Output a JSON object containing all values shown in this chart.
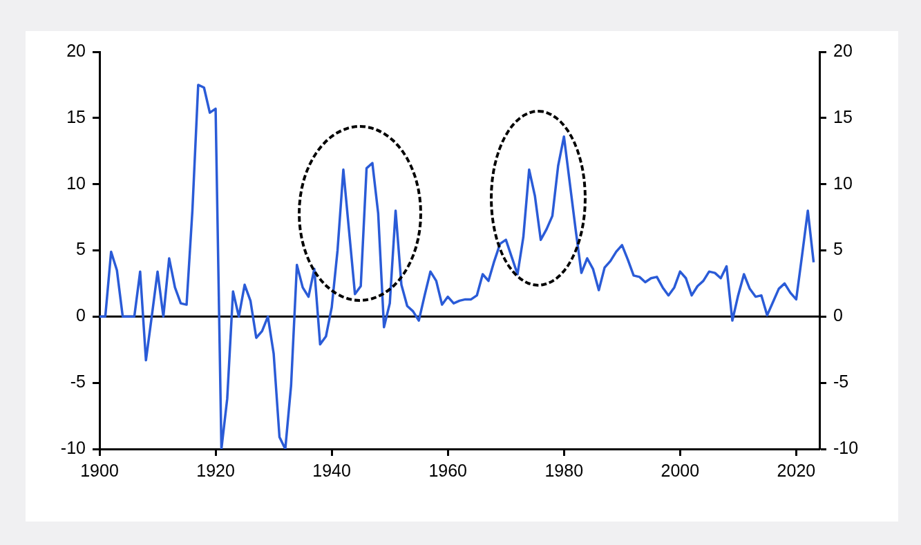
{
  "chart_data": {
    "type": "line",
    "color": "#2a5bd7",
    "marker": "none",
    "x": [
      1900,
      1901,
      1902,
      1903,
      1904,
      1905,
      1906,
      1907,
      1908,
      1909,
      1910,
      1911,
      1912,
      1913,
      1914,
      1915,
      1916,
      1917,
      1918,
      1919,
      1920,
      1921,
      1922,
      1923,
      1924,
      1925,
      1926,
      1927,
      1928,
      1929,
      1930,
      1931,
      1932,
      1933,
      1934,
      1935,
      1936,
      1937,
      1938,
      1939,
      1940,
      1941,
      1942,
      1943,
      1944,
      1945,
      1946,
      1947,
      1948,
      1949,
      1950,
      1951,
      1952,
      1953,
      1954,
      1955,
      1956,
      1957,
      1958,
      1959,
      1960,
      1961,
      1962,
      1963,
      1964,
      1965,
      1966,
      1967,
      1968,
      1969,
      1970,
      1971,
      1972,
      1973,
      1974,
      1975,
      1976,
      1977,
      1978,
      1979,
      1980,
      1981,
      1982,
      1983,
      1984,
      1985,
      1986,
      1987,
      1988,
      1989,
      1990,
      1991,
      1992,
      1993,
      1994,
      1995,
      1996,
      1997,
      1998,
      1999,
      2000,
      2001,
      2002,
      2003,
      2004,
      2005,
      2006,
      2007,
      2008,
      2009,
      2010,
      2011,
      2012,
      2013,
      2014,
      2015,
      2016,
      2017,
      2018,
      2019,
      2020,
      2021,
      2022,
      2023
    ],
    "values": [
      0,
      0,
      4.9,
      3.5,
      0,
      0,
      0,
      3.4,
      -3.3,
      0,
      3.4,
      0,
      4.4,
      2.2,
      1.0,
      0.9,
      8.0,
      17.5,
      17.3,
      15.4,
      15.7,
      -10,
      -6.2,
      1.9,
      0,
      2.4,
      1.2,
      -1.6,
      -1.1,
      0,
      -2.8,
      -9.1,
      -10,
      -5.2,
      3.9,
      2.2,
      1.5,
      3.6,
      -2.1,
      -1.5,
      0.7,
      5.0,
      11.1,
      6.4,
      1.7,
      2.3,
      11.2,
      11.6,
      7.8,
      -0.8,
      1.0,
      8.0,
      2.4,
      0.8,
      0.4,
      -0.3,
      1.6,
      3.4,
      2.7,
      0.9,
      1.5,
      1.0,
      1.2,
      1.3,
      1.3,
      1.6,
      3.2,
      2.7,
      4.2,
      5.5,
      5.8,
      4.5,
      3.2,
      6.0,
      11.1,
      9.1,
      5.8,
      6.6,
      7.6,
      11.4,
      13.6,
      10.1,
      6.6,
      3.3,
      4.4,
      3.6,
      2.0,
      3.7,
      4.2,
      4.9,
      5.4,
      4.3,
      3.1,
      3.0,
      2.6,
      2.9,
      3.0,
      2.2,
      1.6,
      2.2,
      3.4,
      2.9,
      1.6,
      2.3,
      2.7,
      3.4,
      3.3,
      2.9,
      3.8,
      -0.3,
      1.6,
      3.2,
      2.1,
      1.5,
      1.6,
      0.1,
      1.1,
      2.1,
      2.5,
      1.8,
      1.3,
      4.6,
      8.0,
      4.1
    ],
    "xlim": [
      1900,
      2024
    ],
    "xticks": [
      1900,
      1920,
      1940,
      1960,
      1980,
      2000,
      2020
    ],
    "ylim": [
      -10,
      20
    ],
    "yticks": [
      -10,
      -5,
      0,
      5,
      10,
      15,
      20
    ],
    "y2lim": [
      -10,
      20
    ],
    "y2ticks": [
      -10,
      -5,
      0,
      5,
      10,
      15,
      20
    ],
    "ref_lines": [
      {
        "axis": "y",
        "value": 0
      }
    ]
  }
}
